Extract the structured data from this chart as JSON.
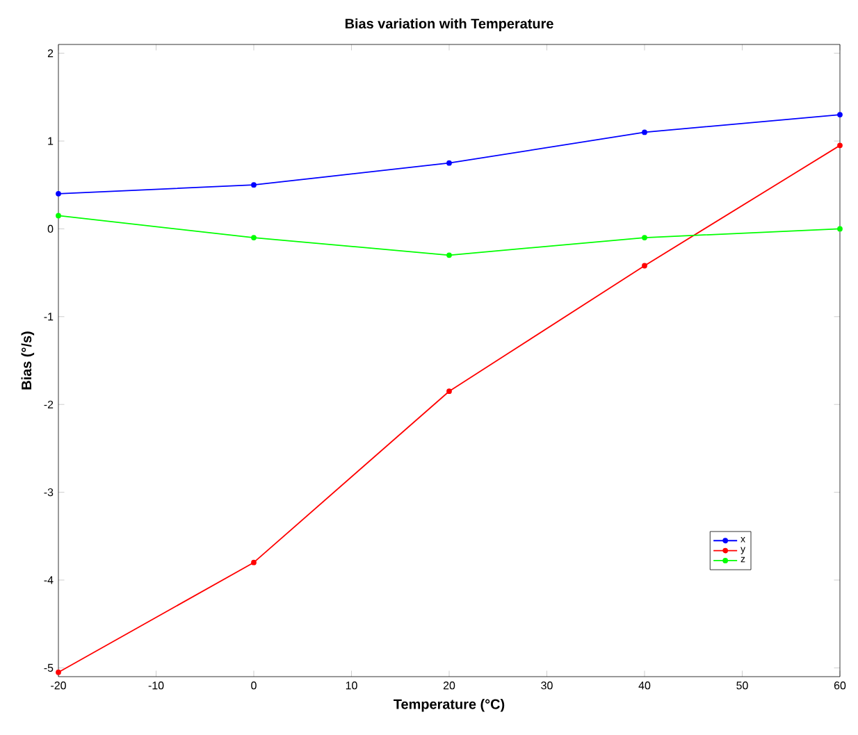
{
  "chart_data": {
    "type": "line",
    "title": "Bias variation with Temperature",
    "xlabel": "Temperature (°C)",
    "ylabel": "Bias (°/s)",
    "x": [
      -20,
      0,
      20,
      40,
      60
    ],
    "series": [
      {
        "name": "x",
        "color": "#0000ff",
        "values": [
          0.4,
          0.5,
          0.75,
          1.1,
          1.3
        ]
      },
      {
        "name": "y",
        "color": "#ff0000",
        "values": [
          -5.05,
          -3.8,
          -1.85,
          -0.42,
          0.95
        ]
      },
      {
        "name": "z",
        "color": "#00ff00",
        "values": [
          0.15,
          -0.1,
          -0.3,
          -0.1,
          0.0
        ]
      }
    ],
    "xlim": [
      -20,
      60
    ],
    "ylim": [
      -5.1,
      2.1
    ],
    "xticks": [
      -20,
      -10,
      0,
      10,
      20,
      30,
      40,
      50,
      60
    ],
    "yticks": [
      -5,
      -4,
      -3,
      -2,
      -1,
      0,
      1,
      2
    ],
    "grid": false,
    "legend": "bottom right",
    "marker": "circle",
    "line_style": "solid"
  }
}
